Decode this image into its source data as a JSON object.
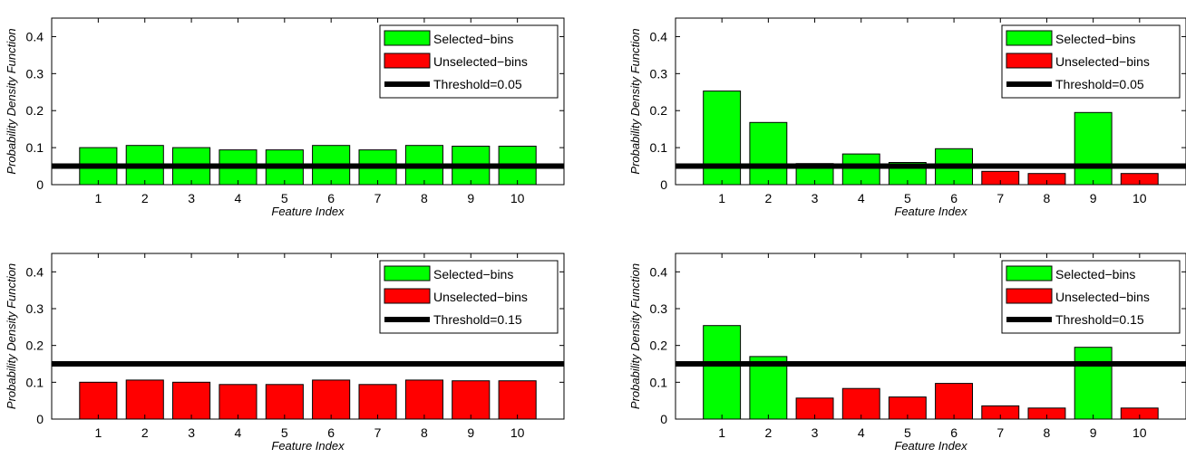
{
  "colors": {
    "selected": "#00ff00",
    "unselected": "#ff0000",
    "threshold": "#000000"
  },
  "chart_data": [
    {
      "type": "bar",
      "xlabel": "Feature Index",
      "ylabel": "Probability Density Function",
      "ylim": [
        0,
        0.45
      ],
      "yticks": [
        "0",
        "0.1",
        "0.2",
        "0.3",
        "0.4"
      ],
      "categories": [
        "1",
        "2",
        "3",
        "4",
        "5",
        "6",
        "7",
        "8",
        "9",
        "10"
      ],
      "values": [
        0.1,
        0.106,
        0.1,
        0.094,
        0.094,
        0.106,
        0.094,
        0.106,
        0.104,
        0.104
      ],
      "selected": [
        true,
        true,
        true,
        true,
        true,
        true,
        true,
        true,
        true,
        true
      ],
      "threshold": 0.05,
      "legend": {
        "selected": "Selected−bins",
        "unselected": "Unselected−bins",
        "threshold": "Threshold=0.05",
        "position": "top-right"
      }
    },
    {
      "type": "bar",
      "xlabel": "Feature Index",
      "ylabel": "Probability Density Function",
      "ylim": [
        0,
        0.45
      ],
      "yticks": [
        "0",
        "0.1",
        "0.2",
        "0.3",
        "0.4"
      ],
      "categories": [
        "1",
        "2",
        "3",
        "4",
        "5",
        "6",
        "7",
        "8",
        "9",
        "10"
      ],
      "values": [
        0.253,
        0.168,
        0.057,
        0.083,
        0.06,
        0.097,
        0.036,
        0.03,
        0.195,
        0.03
      ],
      "selected": [
        true,
        true,
        true,
        true,
        true,
        true,
        false,
        false,
        true,
        false
      ],
      "threshold": 0.05,
      "legend": {
        "selected": "Selected−bins",
        "unselected": "Unselected−bins",
        "threshold": "Threshold=0.05",
        "position": "top-right"
      }
    },
    {
      "type": "bar",
      "xlabel": "Feature Index",
      "ylabel": "Probability Density Function",
      "ylim": [
        0,
        0.45
      ],
      "yticks": [
        "0",
        "0.1",
        "0.2",
        "0.3",
        "0.4"
      ],
      "categories": [
        "1",
        "2",
        "3",
        "4",
        "5",
        "6",
        "7",
        "8",
        "9",
        "10"
      ],
      "values": [
        0.1,
        0.106,
        0.1,
        0.094,
        0.094,
        0.106,
        0.094,
        0.106,
        0.104,
        0.104
      ],
      "selected": [
        false,
        false,
        false,
        false,
        false,
        false,
        false,
        false,
        false,
        false
      ],
      "threshold": 0.15,
      "legend": {
        "selected": "Selected−bins",
        "unselected": "Unselected−bins",
        "threshold": "Threshold=0.15",
        "position": "top-right"
      }
    },
    {
      "type": "bar",
      "xlabel": "Feature Index",
      "ylabel": "Probability Density Function",
      "ylim": [
        0,
        0.45
      ],
      "yticks": [
        "0",
        "0.1",
        "0.2",
        "0.3",
        "0.4"
      ],
      "categories": [
        "1",
        "2",
        "3",
        "4",
        "5",
        "6",
        "7",
        "8",
        "9",
        "10"
      ],
      "values": [
        0.254,
        0.17,
        0.057,
        0.083,
        0.06,
        0.097,
        0.036,
        0.03,
        0.195,
        0.03
      ],
      "selected": [
        true,
        true,
        false,
        false,
        false,
        false,
        false,
        false,
        true,
        false
      ],
      "threshold": 0.15,
      "legend": {
        "selected": "Selected−bins",
        "unselected": "Unselected−bins",
        "threshold": "Threshold=0.15",
        "position": "top-right"
      }
    }
  ]
}
